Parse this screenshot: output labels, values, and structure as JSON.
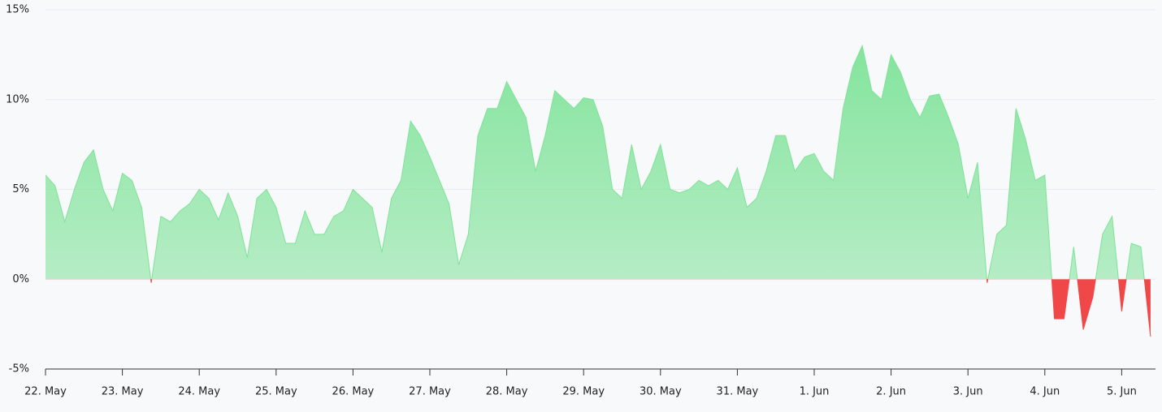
{
  "chart_data": {
    "type": "area",
    "categories": [
      "22. May",
      null,
      null,
      null,
      null,
      null,
      null,
      null,
      "23. May",
      null,
      null,
      null,
      null,
      null,
      null,
      null,
      "24. May",
      null,
      null,
      null,
      null,
      null,
      null,
      null,
      "25. May",
      null,
      null,
      null,
      null,
      null,
      null,
      null,
      "26. May",
      null,
      null,
      null,
      null,
      null,
      null,
      null,
      "27. May",
      null,
      null,
      null,
      null,
      null,
      null,
      null,
      "28. May",
      null,
      null,
      null,
      null,
      null,
      null,
      null,
      "29. May",
      null,
      null,
      null,
      null,
      null,
      null,
      null,
      "30. May",
      null,
      null,
      null,
      null,
      null,
      null,
      null,
      "31. May",
      null,
      null,
      null,
      null,
      null,
      null,
      null,
      "1. Jun",
      null,
      null,
      null,
      null,
      null,
      null,
      null,
      "2. Jun",
      null,
      null,
      null,
      null,
      null,
      null,
      null,
      "3. Jun",
      null,
      null,
      null,
      null,
      null,
      null,
      null,
      "4. Jun",
      null,
      null,
      null,
      null,
      null,
      null,
      null,
      "5. Jun",
      null,
      null,
      null
    ],
    "values": [
      5.8,
      5.2,
      3.2,
      5.0,
      6.5,
      7.2,
      5.0,
      3.8,
      5.9,
      5.5,
      4.0,
      -0.2,
      3.5,
      3.2,
      3.8,
      4.2,
      5.0,
      4.5,
      3.3,
      4.8,
      3.5,
      1.2,
      4.5,
      5.0,
      4.0,
      2.0,
      2.0,
      3.8,
      2.5,
      2.5,
      3.5,
      3.8,
      5.0,
      4.5,
      4.0,
      1.5,
      4.5,
      5.5,
      8.8,
      8.0,
      6.8,
      5.5,
      4.2,
      0.8,
      2.5,
      8.0,
      9.5,
      9.5,
      11.0,
      10.0,
      9.0,
      6.0,
      8.0,
      10.5,
      10.0,
      9.5,
      10.1,
      10.0,
      8.5,
      5.0,
      4.5,
      7.5,
      5.0,
      6.0,
      7.5,
      5.0,
      4.8,
      5.0,
      5.5,
      5.2,
      5.5,
      5.0,
      6.2,
      4.0,
      4.5,
      6.0,
      8.0,
      8.0,
      6.0,
      6.8,
      7.0,
      6.0,
      5.5,
      9.5,
      11.8,
      13.0,
      10.5,
      10.0,
      12.5,
      11.5,
      10.0,
      9.0,
      10.2,
      10.3,
      9.0,
      7.5,
      4.5,
      6.5,
      -0.2,
      2.5,
      3.0,
      9.5,
      7.8,
      5.5,
      5.8,
      -2.2,
      -2.2,
      1.8,
      -2.8,
      -1.0,
      2.5,
      3.5,
      -1.8,
      2.0,
      1.8,
      -3.2
    ],
    "color": "#7ee398",
    "negative_color": "#f04848",
    "ylim": [
      -5,
      15
    ],
    "yticks": [
      {
        "value": -5,
        "label": "-5%"
      },
      {
        "value": 0,
        "label": "0%"
      },
      {
        "value": 5,
        "label": "5%"
      },
      {
        "value": 10,
        "label": "10%"
      },
      {
        "value": 15,
        "label": "15%"
      }
    ],
    "grid": true
  }
}
